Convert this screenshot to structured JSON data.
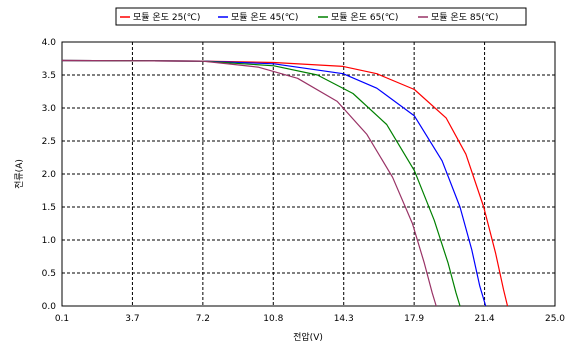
{
  "chart_data": {
    "type": "line",
    "xlabel": "전압(V)",
    "ylabel": "전류(A)",
    "xlim": [
      0.1,
      25.0
    ],
    "ylim": [
      0.0,
      4.0
    ],
    "x_ticks": [
      "0.1",
      "3.7",
      "7.2",
      "10.8",
      "14.3",
      "17.9",
      "21.4",
      "25.0"
    ],
    "y_ticks": [
      "0.0",
      "0.5",
      "1.0",
      "1.5",
      "2.0",
      "2.5",
      "3.0",
      "3.5",
      "4.0"
    ],
    "grid": true,
    "legend_position": "top",
    "series": [
      {
        "name": "모듈 온도 25(℃)",
        "color": "#ff0000",
        "x": [
          0.1,
          7.2,
          10.8,
          14.3,
          16.0,
          17.9,
          19.5,
          20.5,
          21.4,
          22.0,
          22.4,
          22.6
        ],
        "y": [
          3.72,
          3.71,
          3.69,
          3.63,
          3.52,
          3.28,
          2.85,
          2.3,
          1.5,
          0.8,
          0.25,
          0.0
        ]
      },
      {
        "name": "모듈 온도 45(℃)",
        "color": "#0000ff",
        "x": [
          0.1,
          7.2,
          10.8,
          14.3,
          16.0,
          17.9,
          19.3,
          20.2,
          20.8,
          21.2,
          21.5
        ],
        "y": [
          3.72,
          3.71,
          3.67,
          3.52,
          3.3,
          2.88,
          2.2,
          1.5,
          0.85,
          0.3,
          0.0
        ]
      },
      {
        "name": "모듈 온도 65(℃)",
        "color": "#008000",
        "x": [
          0.1,
          7.2,
          10.8,
          13.0,
          14.8,
          16.5,
          17.9,
          18.9,
          19.6,
          20.0,
          20.2
        ],
        "y": [
          3.72,
          3.71,
          3.64,
          3.5,
          3.22,
          2.75,
          2.05,
          1.3,
          0.65,
          0.2,
          0.0
        ]
      },
      {
        "name": "모듈 온도 85(℃)",
        "color": "#993366",
        "x": [
          0.1,
          7.2,
          10.0,
          12.0,
          14.0,
          15.5,
          16.8,
          17.8,
          18.4,
          18.8,
          19.0
        ],
        "y": [
          3.72,
          3.71,
          3.62,
          3.45,
          3.1,
          2.6,
          1.95,
          1.25,
          0.65,
          0.2,
          0.0
        ]
      }
    ]
  }
}
